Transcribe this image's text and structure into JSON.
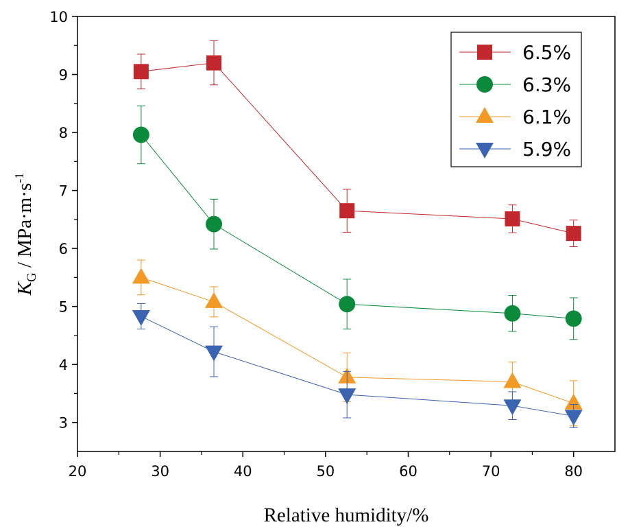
{
  "chart_data": {
    "type": "line",
    "xlabel": "Relative humidity/%",
    "ylabel": {
      "main": "K",
      "sub": "G",
      "unit": " / MPa·m·s",
      "sup": "-1"
    },
    "xlim": [
      20,
      85
    ],
    "ylim": [
      2.5,
      10
    ],
    "xticks": [
      20,
      30,
      40,
      50,
      60,
      70,
      80
    ],
    "yticks": [
      3,
      4,
      5,
      6,
      7,
      8,
      9,
      10
    ],
    "grid": false,
    "legend_placement": "top-right",
    "x": [
      27.7,
      36.5,
      52.6,
      72.6,
      80
    ],
    "series": [
      {
        "name": "6.5%",
        "marker": "square",
        "color": "#c1272d",
        "values": [
          9.05,
          9.2,
          6.65,
          6.51,
          6.26
        ],
        "errors": [
          0.3,
          0.38,
          0.37,
          0.24,
          0.23
        ]
      },
      {
        "name": "6.3%",
        "marker": "circle",
        "color": "#0b8a3b",
        "values": [
          7.96,
          6.42,
          5.04,
          4.88,
          4.79
        ],
        "errors": [
          0.5,
          0.43,
          0.43,
          0.31,
          0.36
        ]
      },
      {
        "name": "6.1%",
        "marker": "triangle-up",
        "color": "#f39a26",
        "values": [
          5.5,
          5.08,
          3.78,
          3.7,
          3.33
        ],
        "errors": [
          0.3,
          0.26,
          0.42,
          0.34,
          0.39
        ]
      },
      {
        "name": "5.9%",
        "marker": "triangle-down",
        "color": "#3a63b1",
        "values": [
          4.83,
          4.22,
          3.48,
          3.29,
          3.11
        ],
        "errors": [
          0.22,
          0.43,
          0.4,
          0.24,
          0.2
        ]
      }
    ]
  }
}
